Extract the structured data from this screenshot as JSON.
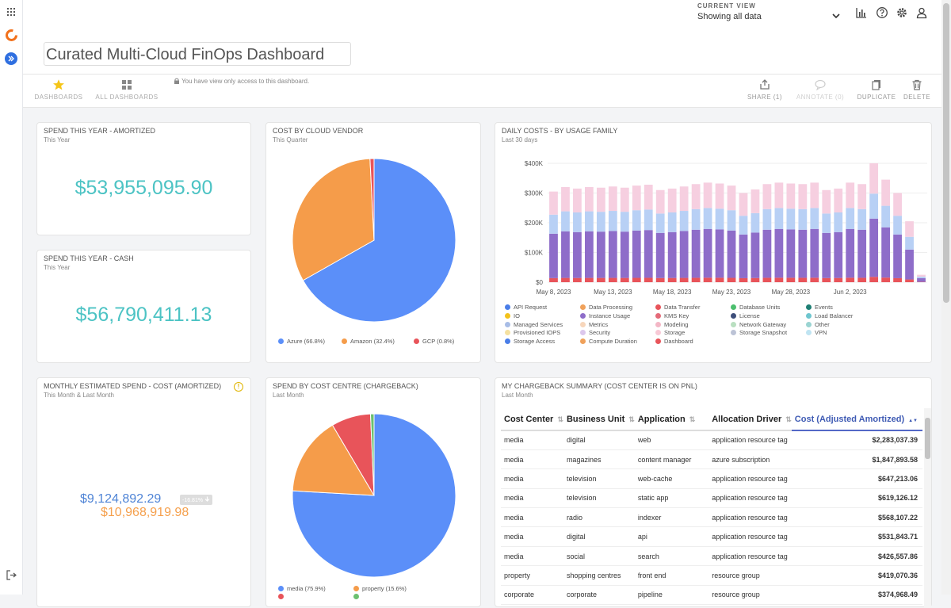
{
  "header": {
    "title": "Curated Multi-Cloud FinOps Dashboard",
    "current_view_label": "CURRENT VIEW",
    "current_view_value": "Showing all data",
    "view_only_note": "You have view only access to this dashboard."
  },
  "toolbar": {
    "dashboards": "DASHBOARDS",
    "all_dashboards": "ALL DASHBOARDS",
    "share": "SHARE (1)",
    "annotate": "ANNOTATE (0)",
    "duplicate": "DUPLICATE",
    "delete": "DELETE"
  },
  "cards": {
    "spend_amortized": {
      "title": "SPEND THIS YEAR - AMORTIZED",
      "subtitle": "This Year",
      "value": "$53,955,095.90"
    },
    "spend_cash": {
      "title": "SPEND THIS YEAR - CASH",
      "subtitle": "This Year",
      "value": "$56,790,411.13"
    },
    "monthly": {
      "title": "MONTHLY ESTIMATED SPEND - COST (AMORTIZED)",
      "subtitle": "This Month & Last Month",
      "value_this": "$9,124,892.29",
      "change": "-16.81%",
      "value_last": "$10,968,919.98"
    },
    "vendor": {
      "title": "COST BY CLOUD VENDOR",
      "subtitle": "This Quarter"
    },
    "centre": {
      "title": "SPEND BY COST CENTRE (CHARGEBACK)",
      "subtitle": "Last Month"
    },
    "daily": {
      "title": "DAILY COSTS - BY USAGE FAMILY",
      "subtitle": "Last 30 days"
    },
    "chargeback": {
      "title": "MY CHARGEBACK SUMMARY (COST CENTER IS ON PNL)",
      "subtitle": "Last Month"
    }
  },
  "chart_data": [
    {
      "type": "pie",
      "title": "COST BY CLOUD VENDOR",
      "slices": [
        {
          "label": "Azure (66.8%)",
          "value": 66.8,
          "color": "#5b8ff9"
        },
        {
          "label": "Amazon (32.4%)",
          "value": 32.4,
          "color": "#f59c4a"
        },
        {
          "label": "GCP (0.8%)",
          "value": 0.8,
          "color": "#e8545a"
        }
      ]
    },
    {
      "type": "pie",
      "title": "SPEND BY COST CENTRE (CHARGEBACK)",
      "slices": [
        {
          "label": "media (75.9%)",
          "value": 75.9,
          "color": "#5b8ff9"
        },
        {
          "label": "property (15.6%)",
          "value": 15.6,
          "color": "#f59c4a"
        },
        {
          "label": "",
          "value": 7.8,
          "color": "#e8545a"
        },
        {
          "label": "",
          "value": 0.7,
          "color": "#6cc070"
        }
      ]
    },
    {
      "type": "bar",
      "stacked": true,
      "title": "DAILY COSTS - BY USAGE FAMILY",
      "x_ticks": [
        "May 8, 2023",
        "May 13, 2023",
        "May 18, 2023",
        "May 23, 2023",
        "May 28, 2023",
        "Jun 2, 2023"
      ],
      "y_ticks": [
        "$0",
        "$100K",
        "$200K",
        "$300K",
        "$400K"
      ],
      "ylim": [
        0,
        400000
      ],
      "series_colors": [
        "#e8545a",
        "#8e6dc9",
        "#b8d0f5",
        "#f6cfe0"
      ],
      "totals": [
        305000,
        320000,
        315000,
        320000,
        318000,
        322000,
        318000,
        325000,
        328000,
        310000,
        315000,
        322000,
        330000,
        335000,
        332000,
        325000,
        300000,
        312000,
        330000,
        335000,
        332000,
        330000,
        335000,
        310000,
        315000,
        335000,
        330000,
        400000,
        345000,
        300000,
        205000,
        25000
      ],
      "legend": [
        {
          "name": "API Request",
          "color": "#4a7ee8"
        },
        {
          "name": "Data Processing",
          "color": "#f0a15a"
        },
        {
          "name": "Data Transfer",
          "color": "#e8545a"
        },
        {
          "name": "Database Units",
          "color": "#4cbf6e"
        },
        {
          "name": "Events",
          "color": "#1e7f74"
        },
        {
          "name": "IO",
          "color": "#f3c21b"
        },
        {
          "name": "Instance Usage",
          "color": "#8e6dc9"
        },
        {
          "name": "KMS Key",
          "color": "#e46a78"
        },
        {
          "name": "License",
          "color": "#3d4e7a"
        },
        {
          "name": "Load Balancer",
          "color": "#6ec6cf"
        },
        {
          "name": "Managed Services",
          "color": "#a8bde6"
        },
        {
          "name": "Metrics",
          "color": "#f7d6bb"
        },
        {
          "name": "Modeling",
          "color": "#f3b7c6"
        },
        {
          "name": "Network Gateway",
          "color": "#b9dfc0"
        },
        {
          "name": "Other",
          "color": "#9ad4d2"
        },
        {
          "name": "Provisioned IOPS",
          "color": "#f5e1a0"
        },
        {
          "name": "Security",
          "color": "#dcc7ec"
        },
        {
          "name": "Storage",
          "color": "#f8c9d6"
        },
        {
          "name": "Storage Snapshot",
          "color": "#bcc3d6"
        },
        {
          "name": "VPN",
          "color": "#bfe4f2"
        },
        {
          "name": "Storage Access",
          "color": "#4a7ee8"
        },
        {
          "name": "Compute Duration",
          "color": "#f0a15a"
        },
        {
          "name": "Dashboard",
          "color": "#e8545a"
        }
      ]
    },
    {
      "type": "table",
      "title": "MY CHARGEBACK SUMMARY (COST CENTER IS ON PNL)",
      "columns": [
        "Cost Center",
        "Business Unit",
        "Application",
        "Allocation Driver",
        "Cost (Adjusted Amortized)"
      ],
      "rows": [
        [
          "media",
          "digital",
          "web",
          "application resource tag",
          "$2,283,037.39"
        ],
        [
          "media",
          "magazines",
          "content manager",
          "azure subscription",
          "$1,847,893.58"
        ],
        [
          "media",
          "television",
          "web-cache",
          "application resource tag",
          "$647,213.06"
        ],
        [
          "media",
          "television",
          "static app",
          "application resource tag",
          "$619,126.12"
        ],
        [
          "media",
          "radio",
          "indexer",
          "application resource tag",
          "$568,107.22"
        ],
        [
          "media",
          "digital",
          "api",
          "application resource tag",
          "$531,843.71"
        ],
        [
          "media",
          "social",
          "search",
          "application resource tag",
          "$426,557.86"
        ],
        [
          "property",
          "shopping centres",
          "front end",
          "resource group",
          "$419,070.36"
        ],
        [
          "corporate",
          "corporate",
          "pipeline",
          "resource group",
          "$374,968.49"
        ]
      ]
    }
  ]
}
